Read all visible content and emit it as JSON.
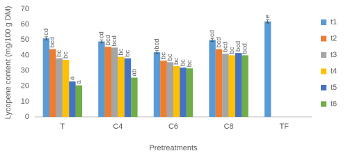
{
  "chart_data": {
    "type": "bar",
    "y_label": "Lycopene content (mg/100 g DM)",
    "x_label": "Pretreatments",
    "categories": [
      "T",
      "C4",
      "C6",
      "C8",
      "TF"
    ],
    "series": [
      {
        "name": "t1",
        "color": "#5b9bd5",
        "values": [
          51,
          49,
          42,
          50,
          62
        ],
        "errors": [
          1,
          1,
          1,
          1,
          1
        ],
        "annotations": [
          "cd",
          "cd",
          "bcd",
          "cd",
          "e"
        ]
      },
      {
        "name": "t2",
        "color": "#ed7d31",
        "values": [
          44,
          45.5,
          36.5,
          44,
          null
        ],
        "annotations": [
          "bcd",
          "bcd",
          "bc",
          "bcd",
          null
        ]
      },
      {
        "name": "t3",
        "color": "#a5a5a5",
        "values": [
          38,
          45,
          35.5,
          41,
          null
        ],
        "annotations": [
          "bc",
          "bcd",
          "bc",
          "bcd",
          null
        ]
      },
      {
        "name": "t4",
        "color": "#ffc000",
        "values": [
          37,
          39,
          33,
          40,
          null
        ],
        "annotations": [
          "bc",
          "bc",
          "bc",
          "bc",
          null
        ]
      },
      {
        "name": "t5",
        "color": "#4472c4",
        "values": [
          23,
          38,
          32,
          41.5,
          null
        ],
        "annotations": [
          "a",
          "bc",
          "bc",
          "bcd",
          null
        ]
      },
      {
        "name": "t6",
        "color": "#70ad47",
        "values": [
          20.5,
          25.5,
          31.5,
          40,
          null
        ],
        "annotations": [
          "a",
          "ab",
          "bc",
          "bcd",
          null
        ]
      }
    ],
    "ylim": [
      0,
      70
    ],
    "yticks": [
      0,
      10,
      20,
      30,
      40,
      50,
      60,
      70
    ],
    "grid": false,
    "legend": "right"
  }
}
